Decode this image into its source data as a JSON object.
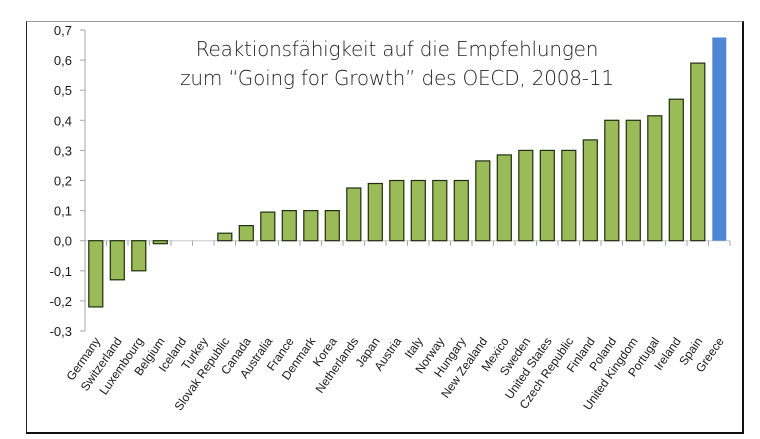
{
  "chart_data": {
    "type": "bar",
    "title_lines": [
      "Reaktionsfähigkeit auf die Empfehlungen",
      "zum “Going for Growth” des OECD, 2008-11"
    ],
    "xlabel": "",
    "ylabel": "",
    "ylim": [
      -0.3,
      0.7
    ],
    "yticks": [
      0.7,
      0.6,
      0.5,
      0.4,
      0.3,
      0.2,
      0.1,
      0.0,
      -0.1,
      -0.2,
      -0.3
    ],
    "ytick_labels": [
      "0,7",
      "0,6",
      "0,5",
      "0,4",
      "0,3",
      "0,2",
      "0,1",
      "0,0",
      "-0,1",
      "-0,2",
      "-0,3"
    ],
    "grid": false,
    "legend": "none",
    "colors": {
      "default": "#9bbb59",
      "highlight": "#4f86d4",
      "outline": "#1f2e12"
    },
    "highlight_category": "Greece",
    "categories": [
      "Germany",
      "Switzerland",
      "Luxembourg",
      "Belgium",
      "Iceland",
      "Turkey",
      "Slovak Republic",
      "Canada",
      "Australia",
      "France",
      "Denmark",
      "Korea",
      "Netherlands",
      "Japan",
      "Austria",
      "Italy",
      "Norway",
      "Hungary",
      "New Zealand",
      "Mexico",
      "Sweden",
      "United States",
      "Czech Republic",
      "Finland",
      "Poland",
      "United Kingdom",
      "Portugal",
      "Ireland",
      "Spain",
      "Greece"
    ],
    "values": [
      -0.22,
      -0.13,
      -0.1,
      -0.01,
      0.0,
      0.0,
      0.025,
      0.05,
      0.095,
      0.1,
      0.1,
      0.1,
      0.175,
      0.19,
      0.2,
      0.2,
      0.2,
      0.2,
      0.265,
      0.285,
      0.3,
      0.3,
      0.3,
      0.335,
      0.4,
      0.4,
      0.415,
      0.47,
      0.59,
      0.675
    ]
  }
}
